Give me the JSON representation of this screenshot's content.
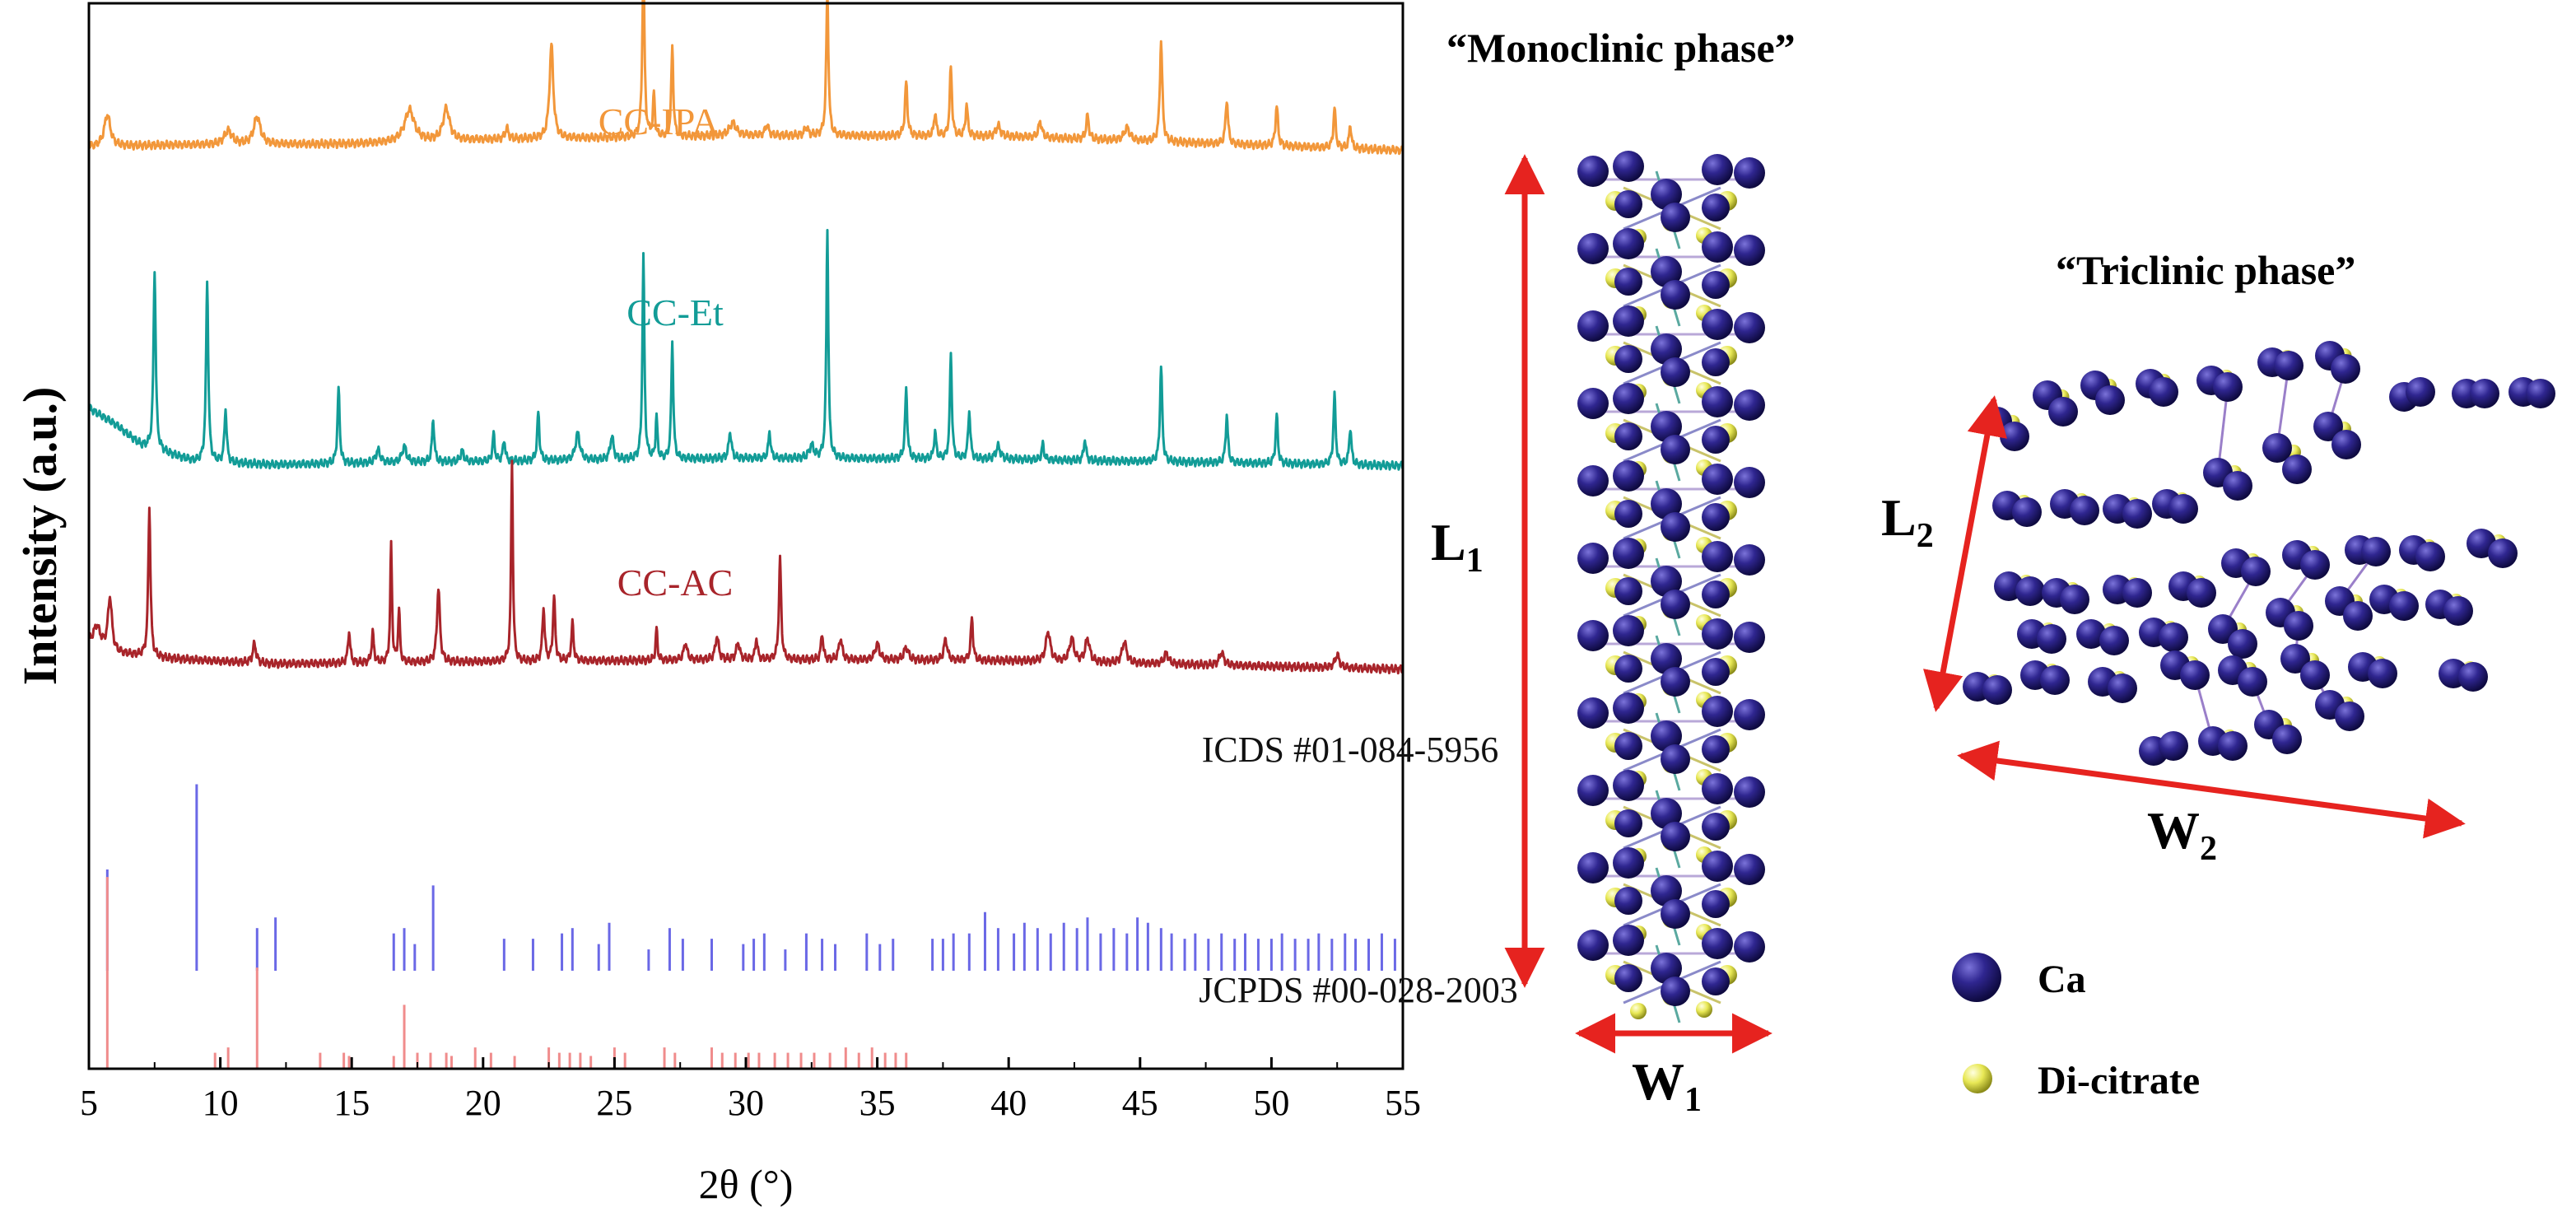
{
  "chart_data": {
    "type": "line",
    "title": "",
    "xlabel": "2θ (°)",
    "ylabel": "Intensity (a.u.)",
    "xlim": [
      5,
      55
    ],
    "x_ticks": [
      5,
      10,
      15,
      20,
      25,
      30,
      35,
      40,
      45,
      50,
      55
    ],
    "series": [
      {
        "name": "CC-IPA",
        "color": "#f2973a",
        "baseline": 0.865,
        "noise_amp": 0.004,
        "background": [
          [
            5,
            0.865
          ],
          [
            8,
            0.867
          ],
          [
            15,
            0.868
          ],
          [
            20,
            0.872
          ],
          [
            25,
            0.874
          ],
          [
            30,
            0.876
          ],
          [
            40,
            0.875
          ],
          [
            55,
            0.862
          ]
        ],
        "peaks": [
          [
            5.7,
            0.03,
            0.28
          ],
          [
            10.3,
            0.013,
            0.35
          ],
          [
            11.4,
            0.026,
            0.3
          ],
          [
            17.2,
            0.03,
            0.45
          ],
          [
            18.6,
            0.03,
            0.3
          ],
          [
            20.9,
            0.01,
            0.15
          ],
          [
            22.6,
            0.088,
            0.17
          ],
          [
            26.1,
            0.16,
            0.1
          ],
          [
            26.5,
            0.04,
            0.08
          ],
          [
            27.2,
            0.085,
            0.09
          ],
          [
            29.5,
            0.012,
            0.3
          ],
          [
            30.8,
            0.01,
            0.15
          ],
          [
            32.3,
            0.008,
            0.15
          ],
          [
            33.1,
            0.135,
            0.1
          ],
          [
            36.1,
            0.05,
            0.11
          ],
          [
            37.2,
            0.022,
            0.1
          ],
          [
            37.8,
            0.065,
            0.1
          ],
          [
            38.4,
            0.03,
            0.1
          ],
          [
            39.6,
            0.01,
            0.2
          ],
          [
            41.2,
            0.015,
            0.15
          ],
          [
            43.0,
            0.022,
            0.12
          ],
          [
            44.5,
            0.012,
            0.25
          ],
          [
            45.8,
            0.095,
            0.11
          ],
          [
            48.3,
            0.042,
            0.11
          ],
          [
            50.2,
            0.038,
            0.11
          ],
          [
            52.4,
            0.038,
            0.1
          ],
          [
            53.0,
            0.022,
            0.1
          ]
        ],
        "label_pos": [
          800,
          163
        ]
      },
      {
        "name": "CC-Et",
        "color": "#129c97",
        "baseline": 0.565,
        "noise_amp": 0.004,
        "background": [
          [
            5,
            0.62
          ],
          [
            6,
            0.605
          ],
          [
            7,
            0.585
          ],
          [
            9,
            0.57
          ],
          [
            12,
            0.567
          ],
          [
            20,
            0.57
          ],
          [
            30,
            0.573
          ],
          [
            40,
            0.572
          ],
          [
            55,
            0.566
          ]
        ],
        "peaks": [
          [
            7.5,
            0.17,
            0.1
          ],
          [
            9.5,
            0.17,
            0.1
          ],
          [
            10.2,
            0.05,
            0.1
          ],
          [
            14.5,
            0.07,
            0.1
          ],
          [
            16.0,
            0.012,
            0.2
          ],
          [
            17.0,
            0.015,
            0.2
          ],
          [
            18.1,
            0.04,
            0.1
          ],
          [
            19.2,
            0.01,
            0.15
          ],
          [
            20.4,
            0.025,
            0.1
          ],
          [
            20.8,
            0.02,
            0.1
          ],
          [
            22.1,
            0.045,
            0.1
          ],
          [
            23.6,
            0.025,
            0.2
          ],
          [
            24.9,
            0.022,
            0.15
          ],
          [
            26.1,
            0.19,
            0.09
          ],
          [
            26.6,
            0.04,
            0.08
          ],
          [
            27.2,
            0.11,
            0.09
          ],
          [
            29.4,
            0.025,
            0.12
          ],
          [
            30.9,
            0.025,
            0.1
          ],
          [
            32.5,
            0.012,
            0.2
          ],
          [
            33.1,
            0.215,
            0.09
          ],
          [
            36.1,
            0.065,
            0.1
          ],
          [
            37.2,
            0.025,
            0.1
          ],
          [
            37.8,
            0.1,
            0.09
          ],
          [
            38.5,
            0.045,
            0.1
          ],
          [
            39.6,
            0.012,
            0.2
          ],
          [
            41.3,
            0.015,
            0.1
          ],
          [
            42.9,
            0.02,
            0.1
          ],
          [
            45.8,
            0.09,
            0.1
          ],
          [
            48.3,
            0.045,
            0.1
          ],
          [
            50.2,
            0.045,
            0.1
          ],
          [
            52.4,
            0.065,
            0.1
          ],
          [
            53.0,
            0.035,
            0.1
          ]
        ],
        "label_pos": [
          820,
          395
        ]
      },
      {
        "name": "CC-AC",
        "color": "#a8242a",
        "baseline": 0.375,
        "noise_amp": 0.004,
        "background": [
          [
            5,
            0.4
          ],
          [
            6,
            0.39
          ],
          [
            8,
            0.385
          ],
          [
            12,
            0.38
          ],
          [
            20,
            0.382
          ],
          [
            30,
            0.384
          ],
          [
            40,
            0.383
          ],
          [
            55,
            0.375
          ]
        ],
        "peaks": [
          [
            5.3,
            0.018,
            0.3
          ],
          [
            5.8,
            0.05,
            0.18
          ],
          [
            7.3,
            0.14,
            0.1
          ],
          [
            11.3,
            0.018,
            0.15
          ],
          [
            14.9,
            0.03,
            0.1
          ],
          [
            15.8,
            0.028,
            0.1
          ],
          [
            16.5,
            0.11,
            0.08
          ],
          [
            16.8,
            0.05,
            0.08
          ],
          [
            18.3,
            0.07,
            0.13
          ],
          [
            21.1,
            0.19,
            0.08
          ],
          [
            22.3,
            0.05,
            0.1
          ],
          [
            22.7,
            0.06,
            0.1
          ],
          [
            23.4,
            0.035,
            0.1
          ],
          [
            26.6,
            0.03,
            0.08
          ],
          [
            27.7,
            0.016,
            0.15
          ],
          [
            28.9,
            0.022,
            0.15
          ],
          [
            29.7,
            0.016,
            0.15
          ],
          [
            30.4,
            0.02,
            0.1
          ],
          [
            31.3,
            0.095,
            0.1
          ],
          [
            32.9,
            0.025,
            0.1
          ],
          [
            33.6,
            0.02,
            0.15
          ],
          [
            35.0,
            0.015,
            0.2
          ],
          [
            36.1,
            0.012,
            0.2
          ],
          [
            37.6,
            0.02,
            0.15
          ],
          [
            38.6,
            0.04,
            0.1
          ],
          [
            41.5,
            0.028,
            0.2
          ],
          [
            42.4,
            0.022,
            0.2
          ],
          [
            43.0,
            0.022,
            0.2
          ],
          [
            44.4,
            0.02,
            0.2
          ],
          [
            46.0,
            0.01,
            0.2
          ],
          [
            48.1,
            0.012,
            0.2
          ],
          [
            52.5,
            0.012,
            0.2
          ]
        ],
        "label_pos": [
          820,
          723
        ]
      }
    ],
    "references": [
      {
        "name": "ICDS #01-084-5956",
        "color": "#6a68e6",
        "base": 0.092,
        "sticks": [
          [
            5.7,
            0.095
          ],
          [
            9.1,
            0.175
          ],
          [
            11.4,
            0.04
          ],
          [
            12.1,
            0.05
          ],
          [
            16.6,
            0.035
          ],
          [
            17.0,
            0.04
          ],
          [
            17.4,
            0.025
          ],
          [
            18.1,
            0.08
          ],
          [
            20.8,
            0.03
          ],
          [
            21.9,
            0.03
          ],
          [
            23.0,
            0.035
          ],
          [
            23.4,
            0.04
          ],
          [
            24.4,
            0.025
          ],
          [
            24.8,
            0.045
          ],
          [
            26.3,
            0.02
          ],
          [
            27.1,
            0.04
          ],
          [
            27.6,
            0.03
          ],
          [
            28.7,
            0.03
          ],
          [
            29.9,
            0.025
          ],
          [
            30.3,
            0.03
          ],
          [
            30.7,
            0.035
          ],
          [
            31.5,
            0.02
          ],
          [
            32.3,
            0.035
          ],
          [
            32.9,
            0.03
          ],
          [
            33.4,
            0.025
          ],
          [
            34.6,
            0.035
          ],
          [
            35.1,
            0.025
          ],
          [
            35.6,
            0.03
          ],
          [
            37.1,
            0.03
          ],
          [
            37.5,
            0.03
          ],
          [
            37.9,
            0.035
          ],
          [
            38.5,
            0.035
          ],
          [
            39.1,
            0.055
          ],
          [
            39.6,
            0.04
          ],
          [
            40.2,
            0.035
          ],
          [
            40.6,
            0.045
          ],
          [
            41.1,
            0.04
          ],
          [
            41.6,
            0.035
          ],
          [
            42.1,
            0.045
          ],
          [
            42.6,
            0.04
          ],
          [
            43.0,
            0.05
          ],
          [
            43.5,
            0.035
          ],
          [
            44.0,
            0.04
          ],
          [
            44.5,
            0.035
          ],
          [
            44.9,
            0.05
          ],
          [
            45.3,
            0.045
          ],
          [
            45.8,
            0.04
          ],
          [
            46.2,
            0.035
          ],
          [
            46.7,
            0.03
          ],
          [
            47.1,
            0.035
          ],
          [
            47.6,
            0.03
          ],
          [
            48.1,
            0.035
          ],
          [
            48.6,
            0.03
          ],
          [
            49.0,
            0.035
          ],
          [
            49.5,
            0.03
          ],
          [
            50.0,
            0.03
          ],
          [
            50.4,
            0.035
          ],
          [
            50.9,
            0.03
          ],
          [
            51.4,
            0.03
          ],
          [
            51.8,
            0.035
          ],
          [
            52.3,
            0.03
          ],
          [
            52.8,
            0.035
          ],
          [
            53.2,
            0.03
          ],
          [
            53.7,
            0.03
          ],
          [
            54.2,
            0.035
          ],
          [
            54.7,
            0.03
          ]
        ],
        "label_pos": [
          1640,
          925
        ]
      },
      {
        "name": "JCPDS #00-028-2003",
        "color": "#f08c8c",
        "base": 0.0,
        "sticks": [
          [
            5.7,
            0.18
          ],
          [
            9.8,
            0.015
          ],
          [
            10.3,
            0.02
          ],
          [
            11.4,
            0.095
          ],
          [
            13.8,
            0.015
          ],
          [
            14.7,
            0.015
          ],
          [
            14.9,
            0.012
          ],
          [
            16.6,
            0.012
          ],
          [
            17.0,
            0.06
          ],
          [
            17.5,
            0.015
          ],
          [
            18.0,
            0.015
          ],
          [
            18.6,
            0.015
          ],
          [
            18.8,
            0.012
          ],
          [
            19.7,
            0.02
          ],
          [
            20.3,
            0.015
          ],
          [
            21.2,
            0.012
          ],
          [
            22.5,
            0.02
          ],
          [
            22.9,
            0.015
          ],
          [
            23.3,
            0.015
          ],
          [
            23.7,
            0.015
          ],
          [
            24.1,
            0.012
          ],
          [
            25.0,
            0.02
          ],
          [
            25.4,
            0.015
          ],
          [
            26.9,
            0.02
          ],
          [
            27.3,
            0.015
          ],
          [
            28.7,
            0.02
          ],
          [
            29.1,
            0.015
          ],
          [
            29.6,
            0.015
          ],
          [
            30.1,
            0.015
          ],
          [
            30.5,
            0.015
          ],
          [
            31.1,
            0.015
          ],
          [
            31.6,
            0.015
          ],
          [
            32.1,
            0.015
          ],
          [
            32.6,
            0.015
          ],
          [
            33.2,
            0.015
          ],
          [
            33.8,
            0.02
          ],
          [
            34.3,
            0.015
          ],
          [
            34.8,
            0.02
          ],
          [
            35.3,
            0.015
          ],
          [
            35.7,
            0.015
          ],
          [
            36.1,
            0.015
          ]
        ],
        "label_pos": [
          1650,
          1217
        ]
      }
    ]
  },
  "structures": {
    "monoclinic": {
      "title": "“Monoclinic phase”",
      "length_label": "L",
      "length_sub": "1",
      "width_label": "W",
      "width_sub": "1"
    },
    "triclinic": {
      "title": "“Triclinic phase”",
      "length_label": "L",
      "length_sub": "2",
      "width_label": "W",
      "width_sub": "2"
    }
  },
  "legend": {
    "items": [
      {
        "label": "Ca",
        "shape": "ca-sphere"
      },
      {
        "label": "Di-citrate",
        "shape": "citrate-sphere"
      }
    ]
  },
  "colors": {
    "ca": "#2a2380",
    "citrate": "#e5e548",
    "arrow": "#e6231f",
    "frame": "#000000"
  }
}
